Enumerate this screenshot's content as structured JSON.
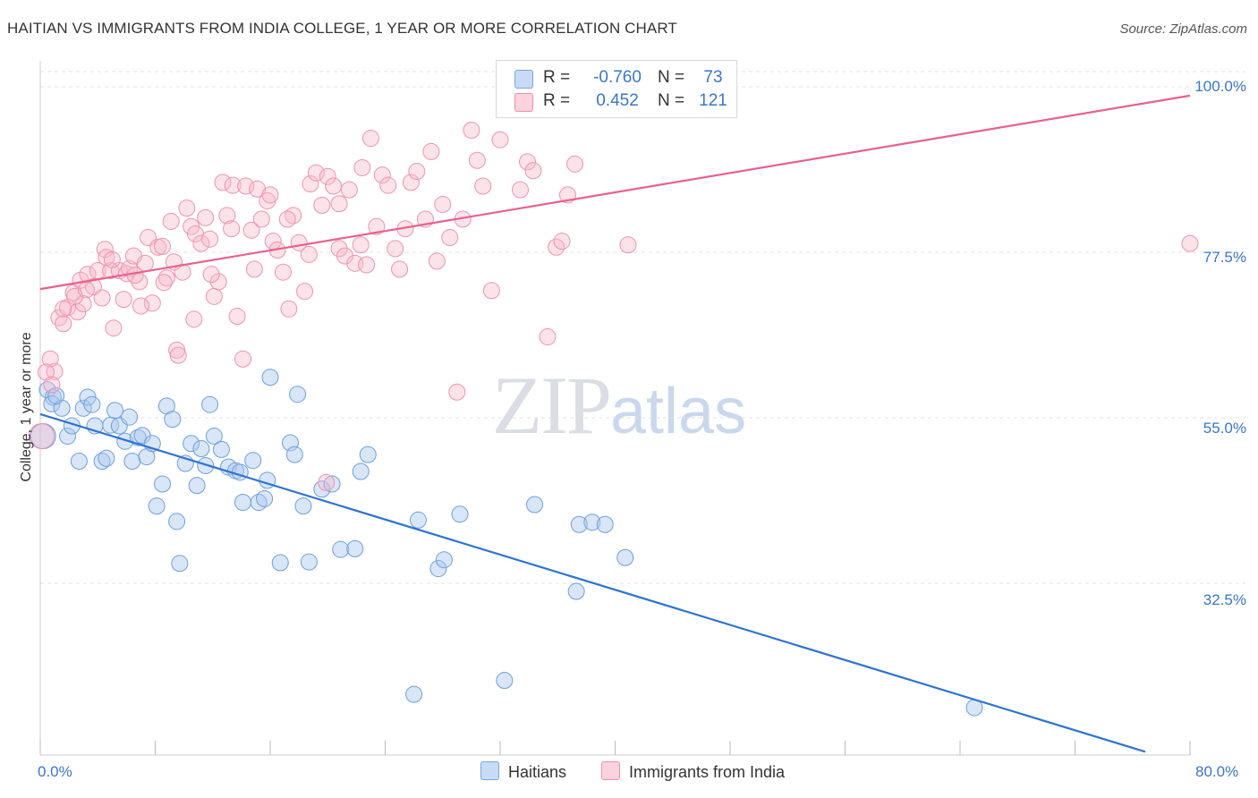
{
  "header": {
    "title": "HAITIAN VS IMMIGRANTS FROM INDIA COLLEGE, 1 YEAR OR MORE CORRELATION CHART",
    "source": "Source: ZipAtlas.com"
  },
  "watermark": {
    "zip": "ZIP",
    "atlas": "atlas"
  },
  "legend": {
    "r_label": "R =",
    "n_label": "N =",
    "rows": [
      {
        "r": "-0.760",
        "n": "73",
        "color": "#aac8f0"
      },
      {
        "r": "0.452",
        "n": "121",
        "color": "#f7b9cb"
      }
    ]
  },
  "bottom_legend": [
    {
      "label": "Haitians",
      "color": "#aac8f0"
    },
    {
      "label": "Immigrants from India",
      "color": "#f7b9cb"
    }
  ],
  "colors": {
    "blue_fill": "#aac8f0",
    "blue_line": "#2f74d0",
    "pink_fill": "#f7b9cb",
    "pink_line": "#e8608f",
    "tick": "#3a76c9",
    "grid": "#e1e1e1"
  },
  "chart_data": {
    "type": "scatter",
    "title": "HAITIAN VS IMMIGRANTS FROM INDIA COLLEGE, 1 YEAR OR MORE CORRELATION CHART",
    "xlabel": "",
    "ylabel": "College, 1 year or more",
    "xlim": [
      0,
      80
    ],
    "ylim": [
      10,
      105
    ],
    "x_tick_labels": [
      "0.0%",
      "80.0%"
    ],
    "y_ticks": [
      100,
      77.5,
      55,
      32.5
    ],
    "y_tick_labels": [
      "100.0%",
      "77.5%",
      "55.0%",
      "32.5%"
    ],
    "grid": "horizontal dashed",
    "legend_position": "top-center",
    "series": [
      {
        "name": "Haitians",
        "color": "#aac8f0",
        "trend": {
          "x": [
            0,
            80
          ],
          "y": [
            55.5,
            9.6
          ]
        },
        "points": [
          [
            0.5,
            58.8
          ],
          [
            0.9,
            57.8
          ],
          [
            0.8,
            56.9
          ],
          [
            1.5,
            56.3
          ],
          [
            1.9,
            52.5
          ],
          [
            2.2,
            53.9
          ],
          [
            2.7,
            49.1
          ],
          [
            3.0,
            56.3
          ],
          [
            3.3,
            57.8
          ],
          [
            3.6,
            56.8
          ],
          [
            3.8,
            53.9
          ],
          [
            4.3,
            49.1
          ],
          [
            4.6,
            49.5
          ],
          [
            4.9,
            54.0
          ],
          [
            5.2,
            56.0
          ],
          [
            5.5,
            53.9
          ],
          [
            5.9,
            51.8
          ],
          [
            6.2,
            55.1
          ],
          [
            6.4,
            49.1
          ],
          [
            6.8,
            52.3
          ],
          [
            7.1,
            52.6
          ],
          [
            7.4,
            49.7
          ],
          [
            7.8,
            51.5
          ],
          [
            8.1,
            43.0
          ],
          [
            8.5,
            46.0
          ],
          [
            8.8,
            56.6
          ],
          [
            9.2,
            54.8
          ],
          [
            9.5,
            40.9
          ],
          [
            9.7,
            35.2
          ],
          [
            10.1,
            48.8
          ],
          [
            10.5,
            51.5
          ],
          [
            10.9,
            45.8
          ],
          [
            11.2,
            50.8
          ],
          [
            11.5,
            48.5
          ],
          [
            11.8,
            56.8
          ],
          [
            12.1,
            52.5
          ],
          [
            12.6,
            50.7
          ],
          [
            13.1,
            48.3
          ],
          [
            13.6,
            47.8
          ],
          [
            13.9,
            47.6
          ],
          [
            14.1,
            43.5
          ],
          [
            14.8,
            49.2
          ],
          [
            15.2,
            43.5
          ],
          [
            15.6,
            44.0
          ],
          [
            15.8,
            46.5
          ],
          [
            16.0,
            60.5
          ],
          [
            16.7,
            35.3
          ],
          [
            17.4,
            51.6
          ],
          [
            17.7,
            50.0
          ],
          [
            17.9,
            58.2
          ],
          [
            18.3,
            43.0
          ],
          [
            18.7,
            35.4
          ],
          [
            19.6,
            45.3
          ],
          [
            20.3,
            46.0
          ],
          [
            20.9,
            37.1
          ],
          [
            21.9,
            37.2
          ],
          [
            22.3,
            47.7
          ],
          [
            22.8,
            50.0
          ],
          [
            26.3,
            41.1
          ],
          [
            27.7,
            34.5
          ],
          [
            28.1,
            35.7
          ],
          [
            29.2,
            41.9
          ],
          [
            32.3,
            19.3
          ],
          [
            34.4,
            43.2
          ],
          [
            37.3,
            31.4
          ],
          [
            37.5,
            40.5
          ],
          [
            38.4,
            40.8
          ],
          [
            39.3,
            40.5
          ],
          [
            40.7,
            36.0
          ],
          [
            65.0,
            15.6
          ],
          [
            26.0,
            17.4
          ],
          [
            0.2,
            52.5
          ],
          [
            1.1,
            58.0
          ]
        ]
      },
      {
        "name": "Immigrants from India",
        "color": "#f7b9cb",
        "trend": {
          "x": [
            0,
            80
          ],
          "y": [
            72.5,
            98.8
          ]
        },
        "points": [
          [
            0.7,
            63.0
          ],
          [
            1.0,
            61.3
          ],
          [
            1.3,
            68.6
          ],
          [
            1.6,
            67.8
          ],
          [
            1.9,
            70.0
          ],
          [
            2.3,
            72.0
          ],
          [
            2.6,
            69.4
          ],
          [
            2.8,
            73.7
          ],
          [
            3.0,
            70.5
          ],
          [
            3.3,
            74.5
          ],
          [
            3.7,
            72.8
          ],
          [
            4.0,
            75.0
          ],
          [
            4.3,
            71.3
          ],
          [
            4.5,
            77.9
          ],
          [
            4.9,
            75.0
          ],
          [
            5.1,
            67.2
          ],
          [
            5.5,
            75.0
          ],
          [
            5.8,
            71.1
          ],
          [
            6.0,
            74.6
          ],
          [
            6.2,
            75.3
          ],
          [
            6.5,
            77.0
          ],
          [
            6.9,
            73.5
          ],
          [
            7.3,
            76.0
          ],
          [
            7.5,
            79.5
          ],
          [
            7.8,
            70.6
          ],
          [
            8.2,
            78.2
          ],
          [
            8.5,
            78.3
          ],
          [
            8.8,
            74.0
          ],
          [
            9.1,
            81.7
          ],
          [
            9.5,
            64.2
          ],
          [
            9.6,
            63.5
          ],
          [
            9.9,
            74.8
          ],
          [
            10.2,
            83.5
          ],
          [
            10.5,
            81.0
          ],
          [
            10.8,
            80.0
          ],
          [
            11.2,
            78.7
          ],
          [
            11.5,
            82.2
          ],
          [
            11.8,
            79.3
          ],
          [
            12.1,
            71.5
          ],
          [
            12.4,
            73.5
          ],
          [
            12.7,
            87.0
          ],
          [
            13.0,
            82.5
          ],
          [
            13.4,
            86.6
          ],
          [
            13.7,
            68.8
          ],
          [
            14.1,
            63.0
          ],
          [
            14.3,
            86.5
          ],
          [
            14.7,
            80.5
          ],
          [
            15.1,
            86.1
          ],
          [
            15.4,
            82.0
          ],
          [
            15.8,
            84.5
          ],
          [
            16.2,
            79.0
          ],
          [
            16.5,
            77.8
          ],
          [
            16.9,
            74.8
          ],
          [
            17.3,
            69.8
          ],
          [
            17.6,
            82.5
          ],
          [
            18.0,
            78.8
          ],
          [
            18.4,
            72.2
          ],
          [
            18.8,
            86.8
          ],
          [
            19.2,
            88.3
          ],
          [
            19.6,
            83.9
          ],
          [
            20.0,
            87.8
          ],
          [
            20.4,
            86.5
          ],
          [
            20.8,
            78.0
          ],
          [
            21.2,
            77.0
          ],
          [
            21.5,
            86.0
          ],
          [
            21.9,
            76.0
          ],
          [
            22.3,
            78.5
          ],
          [
            22.7,
            75.8
          ],
          [
            23.0,
            93.0
          ],
          [
            23.4,
            81.0
          ],
          [
            23.8,
            88.0
          ],
          [
            24.2,
            86.6
          ],
          [
            24.7,
            78.0
          ],
          [
            25.0,
            75.2
          ],
          [
            25.4,
            80.7
          ],
          [
            25.8,
            87.0
          ],
          [
            26.2,
            88.5
          ],
          [
            26.8,
            82.0
          ],
          [
            27.2,
            91.2
          ],
          [
            27.6,
            76.3
          ],
          [
            28.0,
            84.0
          ],
          [
            28.5,
            79.5
          ],
          [
            29.0,
            58.5
          ],
          [
            29.4,
            82.0
          ],
          [
            30.0,
            94.1
          ],
          [
            30.4,
            90.0
          ],
          [
            30.8,
            86.5
          ],
          [
            31.4,
            72.3
          ],
          [
            32.0,
            92.8
          ],
          [
            33.4,
            86.0
          ],
          [
            33.9,
            89.8
          ],
          [
            34.3,
            88.6
          ],
          [
            35.3,
            66.0
          ],
          [
            35.9,
            78.2
          ],
          [
            36.3,
            79.0
          ],
          [
            36.7,
            85.3
          ],
          [
            37.2,
            89.5
          ],
          [
            40.9,
            78.5
          ],
          [
            80.0,
            78.7
          ],
          [
            0.4,
            61.2
          ],
          [
            0.8,
            59.5
          ],
          [
            1.6,
            69.8
          ],
          [
            2.4,
            71.5
          ],
          [
            3.2,
            72.4
          ],
          [
            4.6,
            76.8
          ],
          [
            5.0,
            76.5
          ],
          [
            6.6,
            74.4
          ],
          [
            7.0,
            70.2
          ],
          [
            8.6,
            73.4
          ],
          [
            9.3,
            76.2
          ],
          [
            10.7,
            68.4
          ],
          [
            11.9,
            74.5
          ],
          [
            13.3,
            80.7
          ],
          [
            14.9,
            75.2
          ],
          [
            16.0,
            85.3
          ],
          [
            17.2,
            82.0
          ],
          [
            18.7,
            77.2
          ],
          [
            19.9,
            46.2
          ],
          [
            20.8,
            84.1
          ],
          [
            22.4,
            89.0
          ],
          [
            0.1,
            52.5
          ]
        ]
      }
    ]
  }
}
